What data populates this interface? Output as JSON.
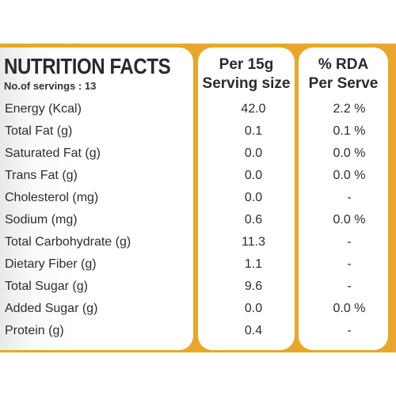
{
  "title": "NUTRITION FACTS",
  "servings_text": "No.of servings : 13",
  "headers": {
    "serving_line1": "Per 15g",
    "serving_line2": "Serving size",
    "rda_line1": "% RDA",
    "rda_line2": "Per Serve"
  },
  "rows": [
    {
      "name": "Energy (Kcal)",
      "serving": "42.0",
      "rda": "2.2 %"
    },
    {
      "name": "Total Fat (g)",
      "serving": "0.1",
      "rda": "0.1 %"
    },
    {
      "name": "Saturated Fat (g)",
      "serving": "0.0",
      "rda": "0.0 %"
    },
    {
      "name": "Trans Fat (g)",
      "serving": "0.0",
      "rda": "0.0 %"
    },
    {
      "name": "Cholesterol (mg)",
      "serving": "0.0",
      "rda": "-"
    },
    {
      "name": "Sodium (mg)",
      "serving": "0.6",
      "rda": "0.0 %"
    },
    {
      "name": "Total Carbohydrate (g)",
      "serving": "11.3",
      "rda": "-"
    },
    {
      "name": "Dietary Fiber (g)",
      "serving": "1.1",
      "rda": "-"
    },
    {
      "name": "Total Sugar (g)",
      "serving": "9.6",
      "rda": "-"
    },
    {
      "name": "Added Sugar (g)",
      "serving": "0.0",
      "rda": "0.0 %"
    },
    {
      "name": "Protein (g)",
      "serving": "0.4",
      "rda": "-"
    }
  ],
  "colors": {
    "label_background": "#e8a72a",
    "panel": "#ffffff",
    "text": "#2b2b2b"
  }
}
